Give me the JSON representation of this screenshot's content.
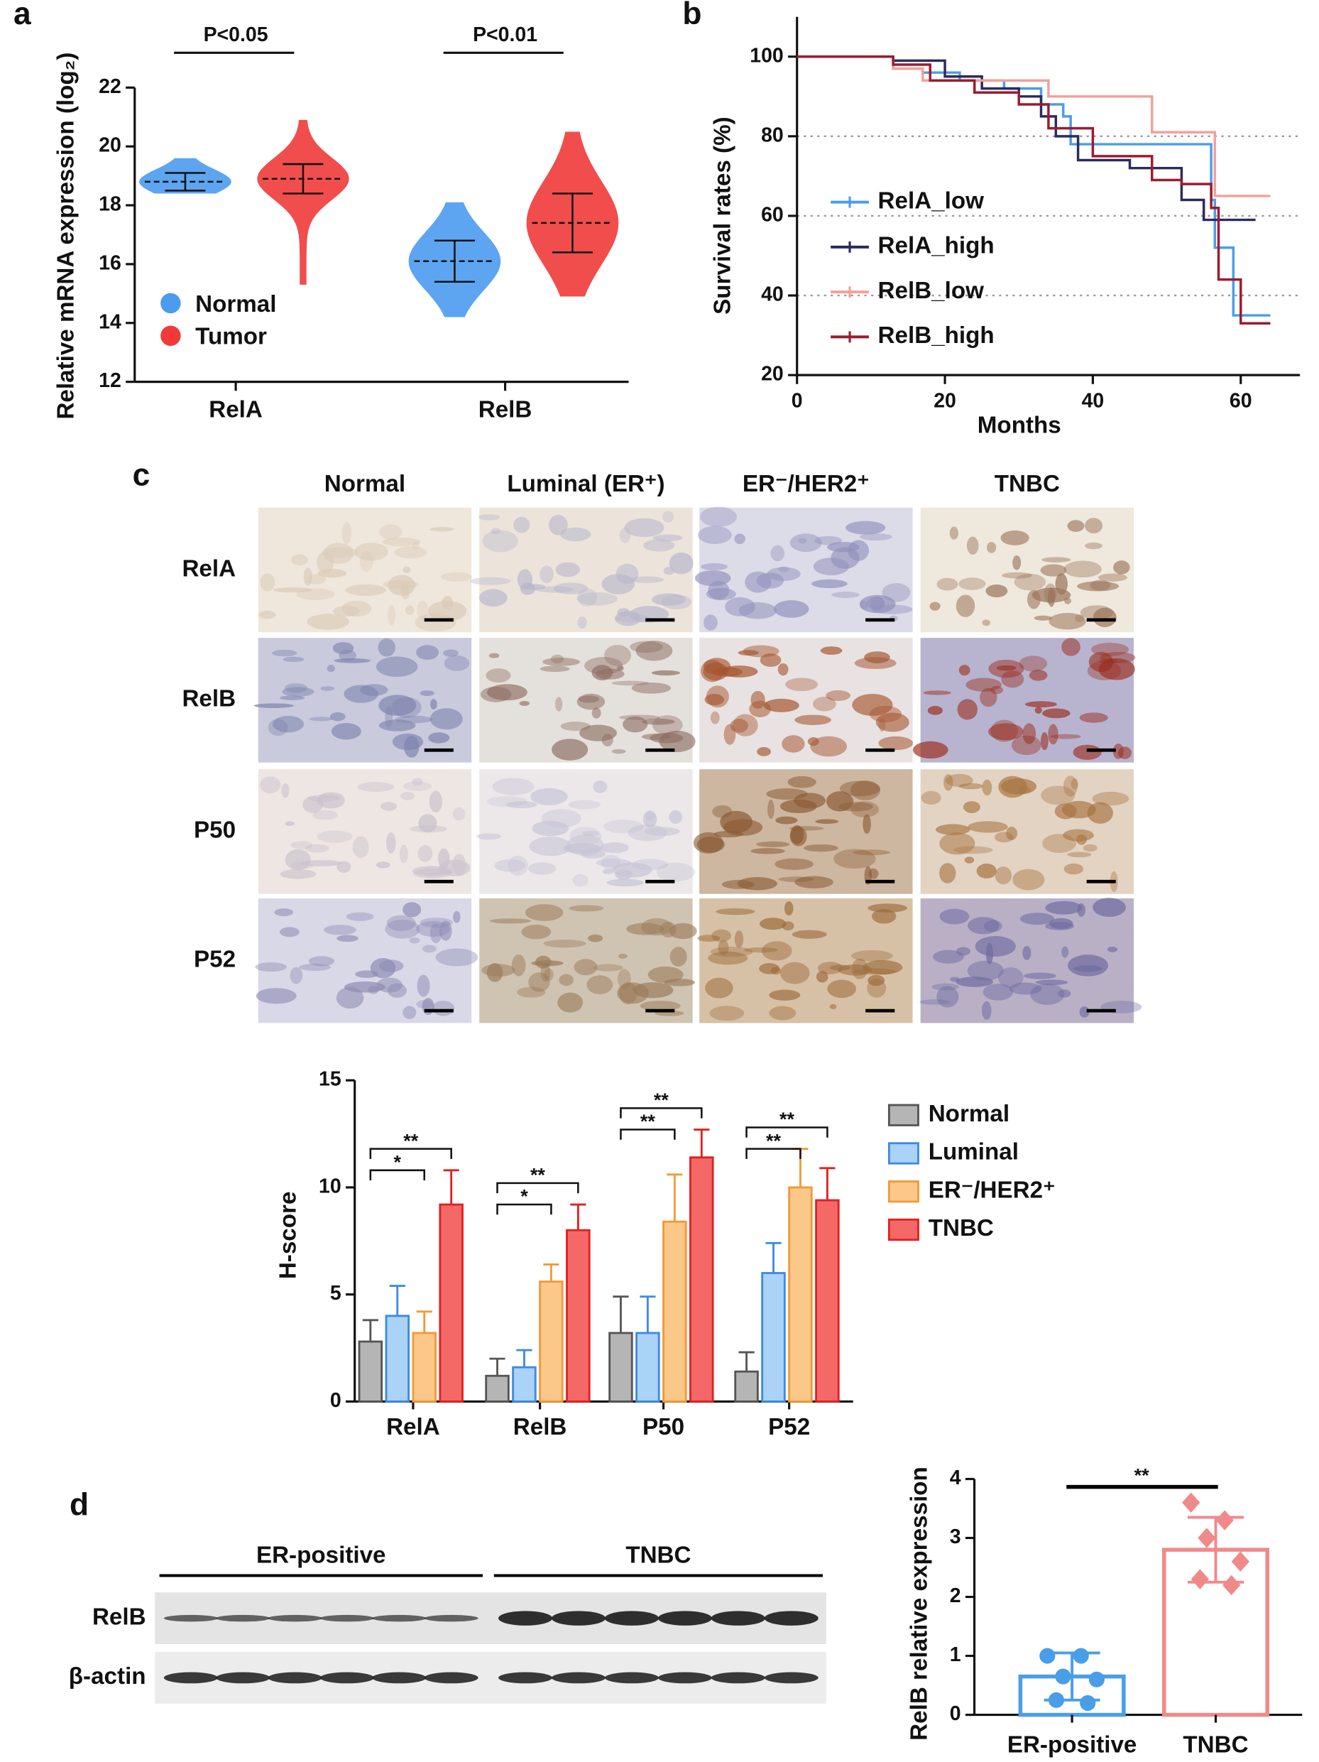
{
  "panel_labels": [
    "a",
    "b",
    "c",
    "d"
  ],
  "chart_data": [
    {
      "type": "dotplot",
      "ylabel": "Relative mRNA expression (log₂)",
      "categories": [
        "RelA",
        "RelB"
      ],
      "series": [
        {
          "name": "Normal",
          "color": "#4b9bef",
          "values": [
            18.8,
            16.1
          ],
          "errors": [
            0.3,
            0.7
          ],
          "min": [
            18.4,
            14.2
          ],
          "max": [
            19.6,
            18.1
          ]
        },
        {
          "name": "Tumor",
          "color": "#f03a3a",
          "values": [
            18.9,
            17.4
          ],
          "errors": [
            0.5,
            1.0
          ],
          "min": [
            15.3,
            14.9
          ],
          "max": [
            20.9,
            20.5
          ]
        }
      ],
      "annotations": [
        "P<0.05",
        "P<0.01"
      ],
      "ylim": [
        12,
        22
      ],
      "yticks": [
        12,
        14,
        16,
        18,
        20,
        22
      ]
    },
    {
      "type": "survival",
      "xlabel": "Months",
      "ylabel": "Survival rates (%)",
      "xlim": [
        0,
        68
      ],
      "ylim": [
        20,
        110
      ],
      "xticks": [
        0,
        20,
        40,
        60
      ],
      "yticks": [
        20,
        40,
        60,
        80,
        100
      ],
      "grid": true,
      "series": [
        {
          "name": "RelA_low",
          "color": "#4a9ee8",
          "x": [
            0,
            13,
            17,
            22,
            28,
            33,
            36,
            37,
            56,
            56.5,
            59,
            64
          ],
          "values": [
            100,
            97,
            96,
            94,
            92,
            88,
            85,
            78,
            64,
            52,
            35,
            35
          ]
        },
        {
          "name": "RelA_high",
          "color": "#2b2b5e",
          "x": [
            0,
            13,
            20,
            25,
            30,
            33,
            35,
            38,
            45,
            52,
            55,
            62
          ],
          "values": [
            100,
            99,
            95,
            92,
            90,
            85,
            80,
            74,
            72,
            64,
            59,
            59
          ]
        },
        {
          "name": "RelB_low",
          "color": "#f4a09a",
          "x": [
            0,
            13,
            17,
            34,
            48,
            56.5,
            64
          ],
          "values": [
            100,
            97,
            94,
            90,
            81,
            65,
            65
          ]
        },
        {
          "name": "RelB_high",
          "color": "#9b1c2e",
          "x": [
            0,
            13,
            18,
            24,
            30,
            34,
            40,
            48,
            52,
            56,
            57,
            60,
            64
          ],
          "values": [
            100,
            98,
            94,
            91,
            88,
            82,
            75,
            69,
            68,
            62,
            44,
            33,
            33
          ]
        }
      ]
    },
    {
      "type": "grouped_bar",
      "ylabel": "H-score",
      "categories": [
        "RelA",
        "RelB",
        "P50",
        "P52"
      ],
      "series": [
        {
          "name": "Normal",
          "color": "#b5b5b5",
          "edge": "#555555",
          "values": [
            2.8,
            1.2,
            3.2,
            1.4
          ],
          "errors": [
            1.0,
            0.8,
            1.7,
            0.9
          ]
        },
        {
          "name": "Luminal",
          "color": "#abd2f7",
          "edge": "#3c8be0",
          "values": [
            4.0,
            1.6,
            3.2,
            6.0
          ],
          "errors": [
            1.4,
            0.8,
            1.7,
            1.4
          ]
        },
        {
          "name": "ER⁻/HER2⁺",
          "color": "#fbc889",
          "edge": "#f19a38",
          "values": [
            3.2,
            5.6,
            8.4,
            10.0
          ],
          "errors": [
            1.0,
            0.8,
            2.2,
            1.8
          ]
        },
        {
          "name": "TNBC",
          "color": "#f56868",
          "edge": "#e02020",
          "values": [
            9.2,
            8.0,
            11.4,
            9.4
          ],
          "errors": [
            1.6,
            1.2,
            1.3,
            1.5
          ]
        }
      ],
      "annotations": [
        {
          "category": 0,
          "from": 0,
          "to": 2,
          "label": "*"
        },
        {
          "category": 0,
          "from": 0,
          "to": 3,
          "label": "**"
        },
        {
          "category": 1,
          "from": 0,
          "to": 2,
          "label": "*"
        },
        {
          "category": 1,
          "from": 0,
          "to": 3,
          "label": "**"
        },
        {
          "category": 2,
          "from": 0,
          "to": 2,
          "label": "**"
        },
        {
          "category": 2,
          "from": 0,
          "to": 3,
          "label": "**"
        },
        {
          "category": 3,
          "from": 0,
          "to": 2,
          "label": "**"
        },
        {
          "category": 3,
          "from": 0,
          "to": 3,
          "label": "**"
        }
      ],
      "ylim": [
        0,
        15
      ],
      "yticks": [
        0,
        5,
        10,
        15
      ]
    },
    {
      "type": "bar_dots",
      "ylabel": "RelB relative expression",
      "categories": [
        "ER-positive",
        "TNBC"
      ],
      "colors": [
        "#4a9ee8",
        "#f08a8a"
      ],
      "values": [
        0.65,
        2.8
      ],
      "errors": [
        0.4,
        0.55
      ],
      "points": [
        [
          1.0,
          1.0,
          0.65,
          0.6,
          0.25,
          0.2
        ],
        [
          3.6,
          3.3,
          3.0,
          2.6,
          2.3,
          2.2
        ]
      ],
      "annotation": "**",
      "ylim": [
        0,
        4
      ],
      "yticks": [
        0,
        1,
        2,
        3,
        4
      ]
    }
  ],
  "ihc": {
    "columns": [
      "Normal",
      "Luminal (ER⁺)",
      "ER⁻/HER2⁺",
      "TNBC"
    ],
    "rows": [
      "RelA",
      "RelB",
      "P50",
      "P52"
    ]
  },
  "blot": {
    "groups": [
      "ER-positive",
      "TNBC"
    ],
    "rows": [
      "RelB",
      "β-actin"
    ]
  }
}
